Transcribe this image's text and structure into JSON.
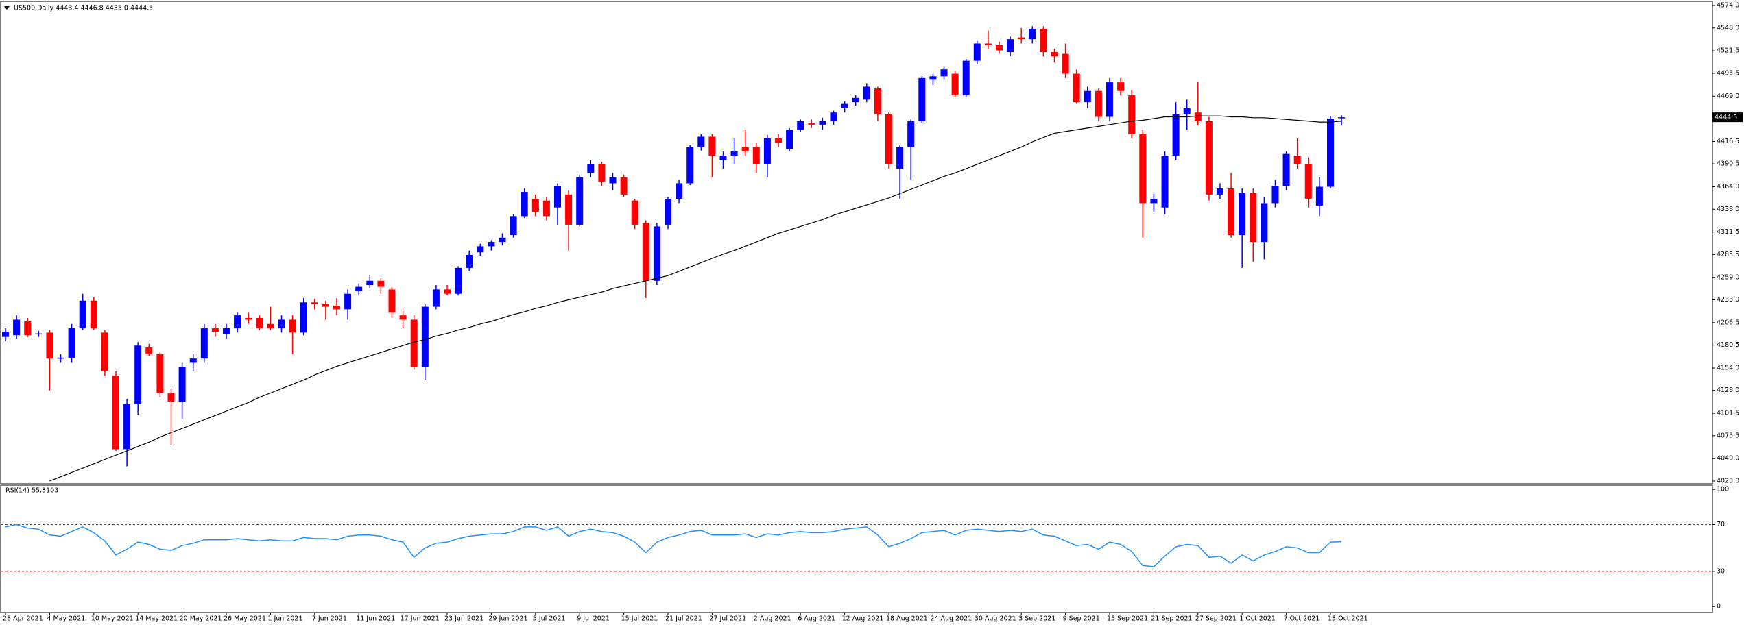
{
  "chart_data": [
    {
      "type": "candlestick",
      "title": "US500,Daily  4443.4 4446.8 4435.0 4444.5",
      "categories": [
        "28 Apr 2021",
        null,
        null,
        null,
        "4 May 2021",
        null,
        null,
        null,
        "10 May 2021",
        null,
        null,
        null,
        "14 May 2021",
        null,
        null,
        null,
        "20 May 2021",
        null,
        null,
        null,
        "26 May 2021",
        null,
        null,
        null,
        "1 Jun 2021",
        null,
        null,
        null,
        "7 Jun 2021",
        null,
        null,
        null,
        "11 Jun 2021",
        null,
        null,
        null,
        "17 Jun 2021",
        null,
        null,
        null,
        "23 Jun 2021",
        null,
        null,
        null,
        "29 Jun 2021",
        null,
        null,
        null,
        "5 Jul 2021",
        null,
        null,
        null,
        "9 Jul 2021",
        null,
        null,
        null,
        "15 Jul 2021",
        null,
        null,
        null,
        "21 Jul 2021",
        null,
        null,
        null,
        "27 Jul 2021",
        null,
        null,
        null,
        "2 Aug 2021",
        null,
        null,
        null,
        "6 Aug 2021",
        null,
        null,
        null,
        "12 Aug 2021",
        null,
        null,
        null,
        "18 Aug 2021",
        null,
        null,
        null,
        "24 Aug 2021",
        null,
        null,
        null,
        "30 Aug 2021",
        null,
        null,
        null,
        "3 Sep 2021",
        null,
        null,
        null,
        "9 Sep 2021",
        null,
        null,
        null,
        "15 Sep 2021",
        null,
        null,
        null,
        "21 Sep 2021",
        null,
        null,
        null,
        "27 Sep 2021",
        null,
        null,
        null,
        "1 Oct 2021",
        null,
        null,
        null,
        "7 Oct 2021",
        null,
        null,
        null,
        "13 Oct 2021",
        null
      ],
      "open": [
        4190,
        4192,
        4208,
        4193,
        4195,
        4165,
        4166,
        4200,
        4232,
        4195,
        4145,
        4060,
        4112,
        4178,
        4170,
        4125,
        4115,
        4160,
        4165,
        4200,
        4193,
        4200,
        4212,
        4212,
        4205,
        4200,
        4210,
        4195,
        4230,
        4228,
        4226,
        4222,
        4243,
        4250,
        4255,
        4245,
        4215,
        4210,
        4155,
        4225,
        4245,
        4240,
        4270,
        4288,
        4295,
        4300,
        4308,
        4330,
        4350,
        4348,
        4340,
        4355,
        4320,
        4380,
        4390,
        4368,
        4375,
        4348,
        4322,
        4255,
        4320,
        4350,
        4368,
        4410,
        4422,
        4395,
        4400,
        4410,
        4410,
        4390,
        4420,
        4408,
        4430,
        4438,
        4436,
        4440,
        4455,
        4462,
        4465,
        4478,
        4448,
        4385,
        4410,
        4440,
        4488,
        4492,
        4495,
        4470,
        4510,
        4530,
        4528,
        4520,
        4537,
        4535,
        4547,
        4520,
        4518,
        4495,
        4462,
        4475,
        4445,
        4485,
        4470,
        4425,
        4345,
        4340,
        4400,
        4448,
        4450,
        4440,
        4355,
        4362,
        4308,
        4357,
        4300,
        4345,
        4365,
        4400,
        4390,
        4342,
        4364,
        4443.4
      ],
      "high": [
        4200,
        4215,
        4212,
        4197,
        4198,
        4170,
        4205,
        4240,
        4236,
        4198,
        4150,
        4118,
        4184,
        4182,
        4172,
        4130,
        4160,
        4170,
        4205,
        4205,
        4205,
        4218,
        4218,
        4215,
        4225,
        4215,
        4215,
        4235,
        4234,
        4232,
        4235,
        4245,
        4252,
        4262,
        4258,
        4248,
        4220,
        4215,
        4228,
        4250,
        4250,
        4272,
        4290,
        4298,
        4302,
        4310,
        4332,
        4362,
        4355,
        4352,
        4368,
        4360,
        4378,
        4395,
        4393,
        4380,
        4378,
        4350,
        4325,
        4322,
        4352,
        4372,
        4412,
        4425,
        4425,
        4405,
        4420,
        4430,
        4415,
        4424,
        4425,
        4432,
        4442,
        4442,
        4444,
        4452,
        4463,
        4470,
        4484,
        4480,
        4450,
        4412,
        4442,
        4492,
        4495,
        4503,
        4498,
        4512,
        4533,
        4545,
        4532,
        4538,
        4548,
        4550,
        4550,
        4524,
        4530,
        4500,
        4480,
        4478,
        4490,
        4490,
        4476,
        4430,
        4356,
        4405,
        4462,
        4465,
        4485,
        4445,
        4368,
        4380,
        4362,
        4362,
        4352,
        4372,
        4405,
        4420,
        4398,
        4375,
        4446,
        4446.8
      ],
      "low": [
        4185,
        4188,
        4190,
        4190,
        4128,
        4160,
        4160,
        4198,
        4198,
        4145,
        4058,
        4040,
        4100,
        4168,
        4120,
        4065,
        4095,
        4150,
        4160,
        4190,
        4188,
        4195,
        4205,
        4198,
        4198,
        4195,
        4170,
        4192,
        4222,
        4210,
        4215,
        4210,
        4238,
        4246,
        4240,
        4212,
        4200,
        4152,
        4140,
        4222,
        4238,
        4238,
        4266,
        4284,
        4290,
        4296,
        4305,
        4328,
        4330,
        4325,
        4320,
        4290,
        4318,
        4375,
        4365,
        4360,
        4352,
        4315,
        4235,
        4250,
        4315,
        4345,
        4366,
        4406,
        4375,
        4385,
        4390,
        4400,
        4380,
        4375,
        4410,
        4405,
        4428,
        4432,
        4430,
        4436,
        4450,
        4458,
        4462,
        4440,
        4385,
        4350,
        4372,
        4438,
        4482,
        4488,
        4468,
        4468,
        4506,
        4524,
        4518,
        4516,
        4530,
        4530,
        4515,
        4508,
        4490,
        4460,
        4455,
        4440,
        4440,
        4470,
        4420,
        4305,
        4335,
        4332,
        4395,
        4430,
        4435,
        4348,
        4350,
        4305,
        4270,
        4277,
        4280,
        4340,
        4360,
        4385,
        4340,
        4330,
        4362,
        4435
      ],
      "close": [
        4196,
        4210,
        4192,
        4194,
        4165,
        4166,
        4200,
        4232,
        4200,
        4150,
        4060,
        4112,
        4180,
        4170,
        4125,
        4115,
        4155,
        4165,
        4200,
        4196,
        4200,
        4215,
        4210,
        4200,
        4200,
        4210,
        4195,
        4230,
        4228,
        4225,
        4222,
        4240,
        4248,
        4255,
        4248,
        4218,
        4210,
        4155,
        4225,
        4245,
        4240,
        4270,
        4285,
        4295,
        4300,
        4305,
        4330,
        4358,
        4335,
        4330,
        4365,
        4320,
        4375,
        4390,
        4370,
        4375,
        4355,
        4320,
        4255,
        4318,
        4350,
        4368,
        4410,
        4422,
        4400,
        4400,
        4405,
        4405,
        4390,
        4420,
        4415,
        4430,
        4440,
        4436,
        4440,
        4450,
        4460,
        4467,
        4480,
        4448,
        4390,
        4410,
        4440,
        4490,
        4492,
        4500,
        4470,
        4510,
        4530,
        4528,
        4522,
        4535,
        4535,
        4547,
        4520,
        4515,
        4495,
        4462,
        4475,
        4445,
        4485,
        4475,
        4425,
        4345,
        4350,
        4400,
        4448,
        4455,
        4440,
        4355,
        4362,
        4308,
        4357,
        4300,
        4345,
        4365,
        4402,
        4390,
        4350,
        4364,
        4443,
        4444.5
      ],
      "up_color": "#0000ff",
      "down_color": "#ff0000",
      "ma": {
        "color": "#000000",
        "values": [
          null,
          null,
          null,
          null,
          4023,
          4028,
          4033,
          4038,
          4043,
          4048,
          4053,
          4058,
          4063,
          4068,
          4074,
          4079,
          4084,
          4089,
          4094,
          4099,
          4104,
          4109,
          4114,
          4120,
          4125,
          4130,
          4135,
          4140,
          4146,
          4151,
          4156,
          4160,
          4164,
          4168,
          4172,
          4176,
          4180,
          4184,
          4187,
          4191,
          4194,
          4198,
          4201,
          4205,
          4208,
          4212,
          4216,
          4219,
          4223,
          4226,
          4230,
          4233,
          4236,
          4239,
          4242,
          4246,
          4249,
          4252,
          4255,
          4258,
          4261,
          4266,
          4271,
          4276,
          4281,
          4286,
          4290,
          4295,
          4300,
          4305,
          4310,
          4314,
          4318,
          4322,
          4326,
          4331,
          4335,
          4339,
          4343,
          4347,
          4351,
          4356,
          4361,
          4366,
          4371,
          4376,
          4380,
          4385,
          4390,
          4395,
          4400,
          4405,
          4410,
          4416,
          4421,
          4426,
          4428,
          4430,
          4432,
          4434,
          4436,
          4438,
          4440,
          4441,
          4443,
          4445,
          4445,
          4445,
          4446,
          4446,
          4446,
          4445,
          4445,
          4444,
          4444,
          4443,
          4442,
          4441,
          4440,
          4439,
          4439,
          4440
        ]
      },
      "ylim": [
        4020.6,
        4578
      ],
      "yticks": [
        {
          "value": 4574,
          "label": "4574.0"
        },
        {
          "value": 4548,
          "label": "4548.0"
        },
        4521.5,
        4495.5,
        {
          "value": 4469,
          "label": "4469.0"
        },
        4416.5,
        4390.5,
        {
          "value": 4364,
          "label": "4364.0"
        },
        {
          "value": 4338,
          "label": "4338.0"
        },
        4311.5,
        4285.5,
        {
          "value": 4259,
          "label": "4259.0"
        },
        {
          "value": 4233,
          "label": "4233.0"
        },
        4206.5,
        4180.5,
        {
          "value": 4154,
          "label": "4154.0"
        },
        {
          "value": 4128,
          "label": "4128.0"
        },
        4101.5,
        4075.5,
        {
          "value": 4049,
          "label": "4049.0"
        },
        {
          "value": 4023,
          "label": "4023.0"
        }
      ]
    },
    {
      "type": "line",
      "title": "RSI(14) 55.3103",
      "values": [
        68,
        70,
        67,
        66,
        61,
        60,
        64,
        68,
        63,
        56,
        44,
        49,
        55,
        53,
        49,
        48,
        52,
        54,
        57,
        57,
        57,
        58,
        57,
        56,
        57,
        56,
        56,
        59,
        58,
        58,
        57,
        60,
        61,
        61,
        60,
        57,
        55,
        42,
        50,
        54,
        55,
        58,
        60,
        61,
        62,
        62,
        64,
        68,
        68,
        65,
        68,
        60,
        64,
        66,
        64,
        63,
        60,
        55,
        46,
        55,
        59,
        61,
        64,
        65,
        61,
        61,
        61,
        62,
        59,
        62,
        61,
        63,
        64,
        63,
        63,
        64,
        66,
        67,
        68,
        61,
        51,
        54,
        58,
        63,
        64,
        65,
        61,
        65,
        66,
        65,
        64,
        65,
        64,
        66,
        61,
        60,
        56,
        52,
        53,
        49,
        55,
        53,
        47,
        35,
        34,
        43,
        51,
        53,
        52,
        42,
        43,
        37,
        44,
        39,
        44,
        47,
        51,
        50,
        46,
        46,
        55,
        55.3
      ],
      "color": "#1e90ff",
      "levels": [
        70,
        30
      ],
      "level_color": "#ff0000",
      "ylim": [
        -4,
        103
      ],
      "yticks": [
        0,
        30,
        70,
        100
      ]
    }
  ]
}
